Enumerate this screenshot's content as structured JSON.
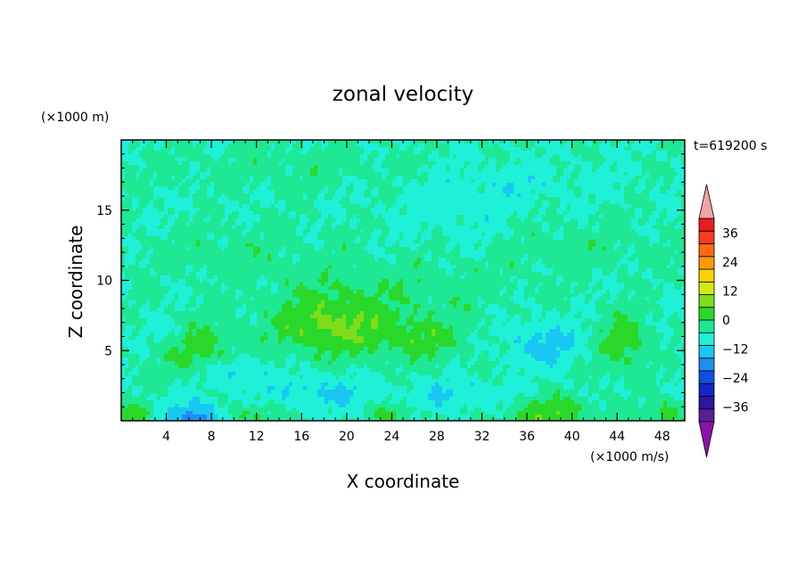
{
  "chart_data": {
    "type": "heatmap",
    "title": "zonal velocity",
    "xlabel": "X coordinate",
    "ylabel": "Z coordinate",
    "y_unit_label": "(×1000 m)",
    "x_unit_label": "(×1000 m/s)",
    "time_label": "t=619200 s",
    "xlim": [
      0,
      50
    ],
    "ylim": [
      0,
      20
    ],
    "x_ticks": [
      4,
      8,
      12,
      16,
      20,
      24,
      28,
      32,
      36,
      40,
      44,
      48
    ],
    "y_ticks": [
      5,
      10,
      15
    ],
    "colorbar": {
      "min": -42,
      "max": 42,
      "step": 6,
      "tick_values": [
        36,
        24,
        12,
        0,
        -12,
        -24,
        -36
      ],
      "tick_labels": [
        "36",
        "24",
        "12",
        "0",
        "−12",
        "−24",
        "−36"
      ],
      "colors": [
        "#5a1d99",
        "#2e14a0",
        "#1626c4",
        "#1050e0",
        "#1e8ef0",
        "#19c8f2",
        "#1ff0d8",
        "#1ee893",
        "#2ad82a",
        "#7fdc18",
        "#d2ea10",
        "#ffd100",
        "#ff9800",
        "#ff6a12",
        "#ff3a1e",
        "#e81e1e"
      ],
      "under_color": "#8a14a8",
      "over_color": "#f4a3a3"
    },
    "features": [
      {
        "x": 6.5,
        "z": 5.2,
        "sx": 3.2,
        "sz": 1.8,
        "value": 11
      },
      {
        "x": 18.5,
        "z": 6.8,
        "sx": 5.0,
        "sz": 2.2,
        "value": 13
      },
      {
        "x": 26.5,
        "z": 5.8,
        "sx": 4.0,
        "sz": 1.6,
        "value": 8
      },
      {
        "x": 44.5,
        "z": 5.6,
        "sx": 2.2,
        "sz": 2.0,
        "value": 10
      },
      {
        "x": 37.5,
        "z": 5.5,
        "sx": 3.2,
        "sz": 1.6,
        "value": -9
      },
      {
        "x": 4.5,
        "z": 6.0,
        "sx": 2.2,
        "sz": 1.2,
        "value": -6
      },
      {
        "x": 6.5,
        "z": 0.0,
        "sx": 2.5,
        "sz": 1.3,
        "value": -16
      },
      {
        "x": 1.0,
        "z": 0.3,
        "sx": 2.0,
        "sz": 1.0,
        "value": 9
      },
      {
        "x": 11.5,
        "z": 0.3,
        "sx": 2.0,
        "sz": 0.9,
        "value": 8
      },
      {
        "x": 24.0,
        "z": 0.3,
        "sx": 2.0,
        "sz": 0.9,
        "value": 8
      },
      {
        "x": 38.0,
        "z": 0.5,
        "sx": 4.0,
        "sz": 1.2,
        "value": 11
      },
      {
        "x": 48.5,
        "z": 0.4,
        "sx": 2.0,
        "sz": 0.9,
        "value": 9
      },
      {
        "x": 18.0,
        "z": 2.0,
        "sx": 5.0,
        "sz": 1.2,
        "value": -7
      },
      {
        "x": 30.0,
        "z": 1.8,
        "sx": 5.0,
        "sz": 1.1,
        "value": -6
      },
      {
        "x": 10.0,
        "z": 3.5,
        "sx": 3.0,
        "sz": 1.0,
        "value": -7
      },
      {
        "x": 25.0,
        "z": 9.5,
        "sx": 10.0,
        "sz": 2.5,
        "value": 4
      },
      {
        "x": 10.0,
        "z": 12.0,
        "sx": 8.0,
        "sz": 2.0,
        "value": 3
      },
      {
        "x": 40.0,
        "z": 12.5,
        "sx": 8.0,
        "sz": 1.8,
        "value": 3
      },
      {
        "x": 15.0,
        "z": 18.0,
        "sx": 12.0,
        "sz": 1.5,
        "value": 3
      },
      {
        "x": 30.0,
        "z": 14.5,
        "sx": 6.0,
        "sz": 2.5,
        "value": -3
      },
      {
        "x": 35.0,
        "z": 17.0,
        "sx": 8.0,
        "sz": 1.5,
        "value": -3
      }
    ]
  }
}
